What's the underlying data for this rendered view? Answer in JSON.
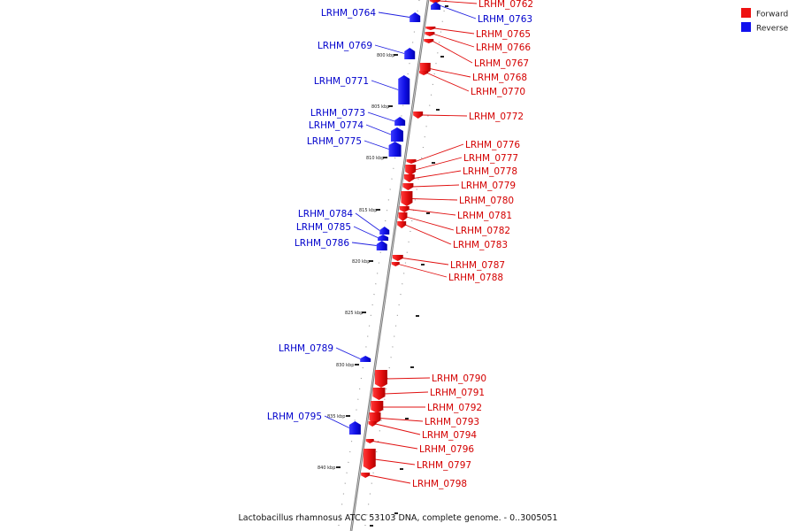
{
  "legend": {
    "forward_label": "Forward",
    "reverse_label": "Reverse",
    "forward_color": "#ee1111",
    "reverse_color": "#1111ee"
  },
  "caption": "Lactobacillus rhamnosus ATCC 53103 DNA, complete genome. - 0..3005051",
  "kbp_markers": [
    "800 kbp",
    "805 kbp",
    "810 kbp",
    "815 kbp",
    "820 kbp",
    "825 kbp",
    "830 kbp",
    "835 kbp",
    "840 kbp"
  ],
  "forward_genes": [
    "LRHM_0762",
    "LRHM_0765",
    "LRHM_0766",
    "LRHM_0767",
    "LRHM_0768",
    "LRHM_0770",
    "LRHM_0772",
    "LRHM_0776",
    "LRHM_0777",
    "LRHM_0778",
    "LRHM_0779",
    "LRHM_0780",
    "LRHM_0781",
    "LRHM_0782",
    "LRHM_0783",
    "LRHM_0787",
    "LRHM_0788",
    "LRHM_0790",
    "LRHM_0791",
    "LRHM_0792",
    "LRHM_0793",
    "LRHM_0794",
    "LRHM_0796",
    "LRHM_0797",
    "LRHM_0798"
  ],
  "reverse_genes": [
    "LRHM_0763",
    "LRHM_0764",
    "LRHM_0769",
    "LRHM_0771",
    "LRHM_0773",
    "LRHM_0774",
    "LRHM_0775",
    "LRHM_0784",
    "LRHM_0785",
    "LRHM_0786",
    "LRHM_0789",
    "LRHM_0795"
  ]
}
